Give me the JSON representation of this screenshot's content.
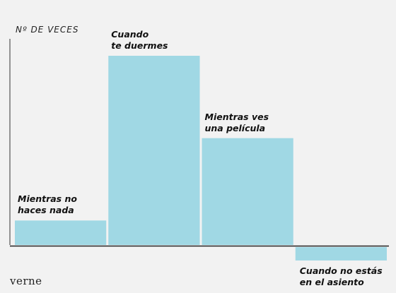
{
  "chart_data": {
    "type": "bar",
    "ylabel": "Nº DE VECES",
    "categories": [
      "Mientras no\nhaces nada",
      "Cuando\nte duermes",
      "Mientras ves\nuna película",
      "Cuando no estás\nen el asiento"
    ],
    "values": [
      11,
      85,
      48,
      -6
    ],
    "ylim": [
      -8,
      95
    ],
    "grid": false,
    "bar_color": "#a0d8e4"
  },
  "brand": "verne"
}
